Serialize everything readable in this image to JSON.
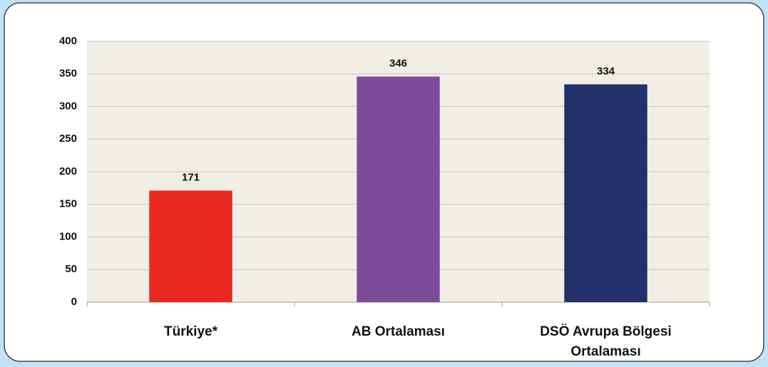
{
  "chart_data": {
    "type": "bar",
    "categories": [
      "Türkiye*",
      "AB Ortalaması",
      "DSÖ Avrupa Bölgesi Ortalaması"
    ],
    "values": [
      171,
      346,
      334
    ],
    "colors": [
      "#e8281f",
      "#7e4b9b",
      "#22306b"
    ],
    "ylim": [
      0,
      400
    ],
    "yticks": [
      0,
      50,
      100,
      150,
      200,
      250,
      300,
      350,
      400
    ],
    "grid": true
  }
}
